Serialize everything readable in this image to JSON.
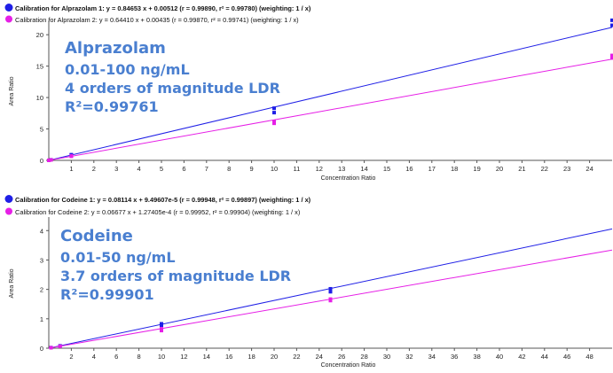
{
  "chart_data": [
    {
      "type": "scatter",
      "legend": [
        {
          "text": "Calibration for Alprazolam 1: y = 0.84653 x + 0.00512 (r = 0.99890, r² = 0.99780)  (weighting: 1 / x)",
          "color": "#1f1fe6",
          "bold": true
        },
        {
          "text": "Calibration for Alprazolam 2: y = 0.64410 x + 0.00435 (r = 0.99870, r² = 0.99741)  (weighting: 1 / x)",
          "color": "#e61fe6",
          "bold": false
        }
      ],
      "xlabel": "Concentration Ratio",
      "ylabel": "Area Ratio",
      "xlim": [
        0,
        25
      ],
      "ylim": [
        0,
        22
      ],
      "xticks": [
        1,
        2,
        3,
        4,
        5,
        6,
        7,
        8,
        9,
        10,
        11,
        12,
        13,
        14,
        15,
        16,
        17,
        18,
        19,
        20,
        21,
        22,
        23,
        24
      ],
      "yticks": [
        0,
        5,
        10,
        15,
        20
      ],
      "series": [
        {
          "color": "#1f1fe6",
          "slope": 0.84653,
          "intercept": 0.00512,
          "points": [
            [
              0.001,
              0.001
            ],
            [
              0.1,
              0.09
            ],
            [
              1,
              0.85
            ],
            [
              1,
              0.9
            ],
            [
              10,
              7.6
            ],
            [
              10,
              8.3
            ],
            [
              25,
              21.5
            ],
            [
              25,
              22.3
            ]
          ]
        },
        {
          "color": "#e61fe6",
          "slope": 0.6441,
          "intercept": 0.00435,
          "points": [
            [
              0.001,
              0.001
            ],
            [
              0.1,
              0.07
            ],
            [
              1,
              0.65
            ],
            [
              1,
              0.7
            ],
            [
              10,
              5.9
            ],
            [
              10,
              6.2
            ],
            [
              25,
              16.3
            ],
            [
              25,
              16.7
            ]
          ]
        }
      ],
      "annotation": {
        "lines": [
          "Alprazolam",
          "0.01-100 ng/mL",
          "4 orders of magnitude LDR",
          "R²=0.99761"
        ]
      }
    },
    {
      "type": "scatter",
      "legend": [
        {
          "text": "Calibration for Codeine 1: y = 0.08114 x + 9.49607e-5 (r = 0.99948, r² = 0.99897)  (weighting: 1 / x)",
          "color": "#1f1fe6",
          "bold": true
        },
        {
          "text": "Calibration for Codeine 2: y = 0.06677 x + 1.27405e-4 (r = 0.99952, r² = 0.99904)  (weighting: 1 / x)",
          "color": "#e61fe6",
          "bold": false
        }
      ],
      "xlabel": "Concentration Ratio",
      "ylabel": "Area Ratio",
      "xlim": [
        0,
        50
      ],
      "ylim": [
        0,
        4.4
      ],
      "xticks": [
        2,
        4,
        6,
        8,
        10,
        12,
        14,
        16,
        18,
        20,
        22,
        24,
        26,
        28,
        30,
        32,
        34,
        36,
        38,
        40,
        42,
        44,
        46,
        48
      ],
      "yticks": [
        0,
        1,
        2,
        3,
        4
      ],
      "series": [
        {
          "color": "#1f1fe6",
          "slope": 0.08114,
          "intercept": 9.49607e-05,
          "points": [
            [
              0.2,
              0.02
            ],
            [
              1,
              0.08
            ],
            [
              10,
              0.78
            ],
            [
              10,
              0.83
            ],
            [
              25,
              1.92
            ],
            [
              25,
              2.02
            ]
          ]
        },
        {
          "color": "#e61fe6",
          "slope": 0.06677,
          "intercept": 0.000127405,
          "points": [
            [
              0.2,
              0.015
            ],
            [
              1,
              0.065
            ],
            [
              10,
              0.6
            ],
            [
              10,
              0.66
            ],
            [
              25,
              1.62
            ],
            [
              25,
              1.67
            ]
          ]
        }
      ],
      "annotation": {
        "lines": [
          "Codeine",
          "0.01-50 ng/mL",
          "3.7 orders of magnitude LDR",
          "R²=0.99901"
        ]
      }
    }
  ]
}
